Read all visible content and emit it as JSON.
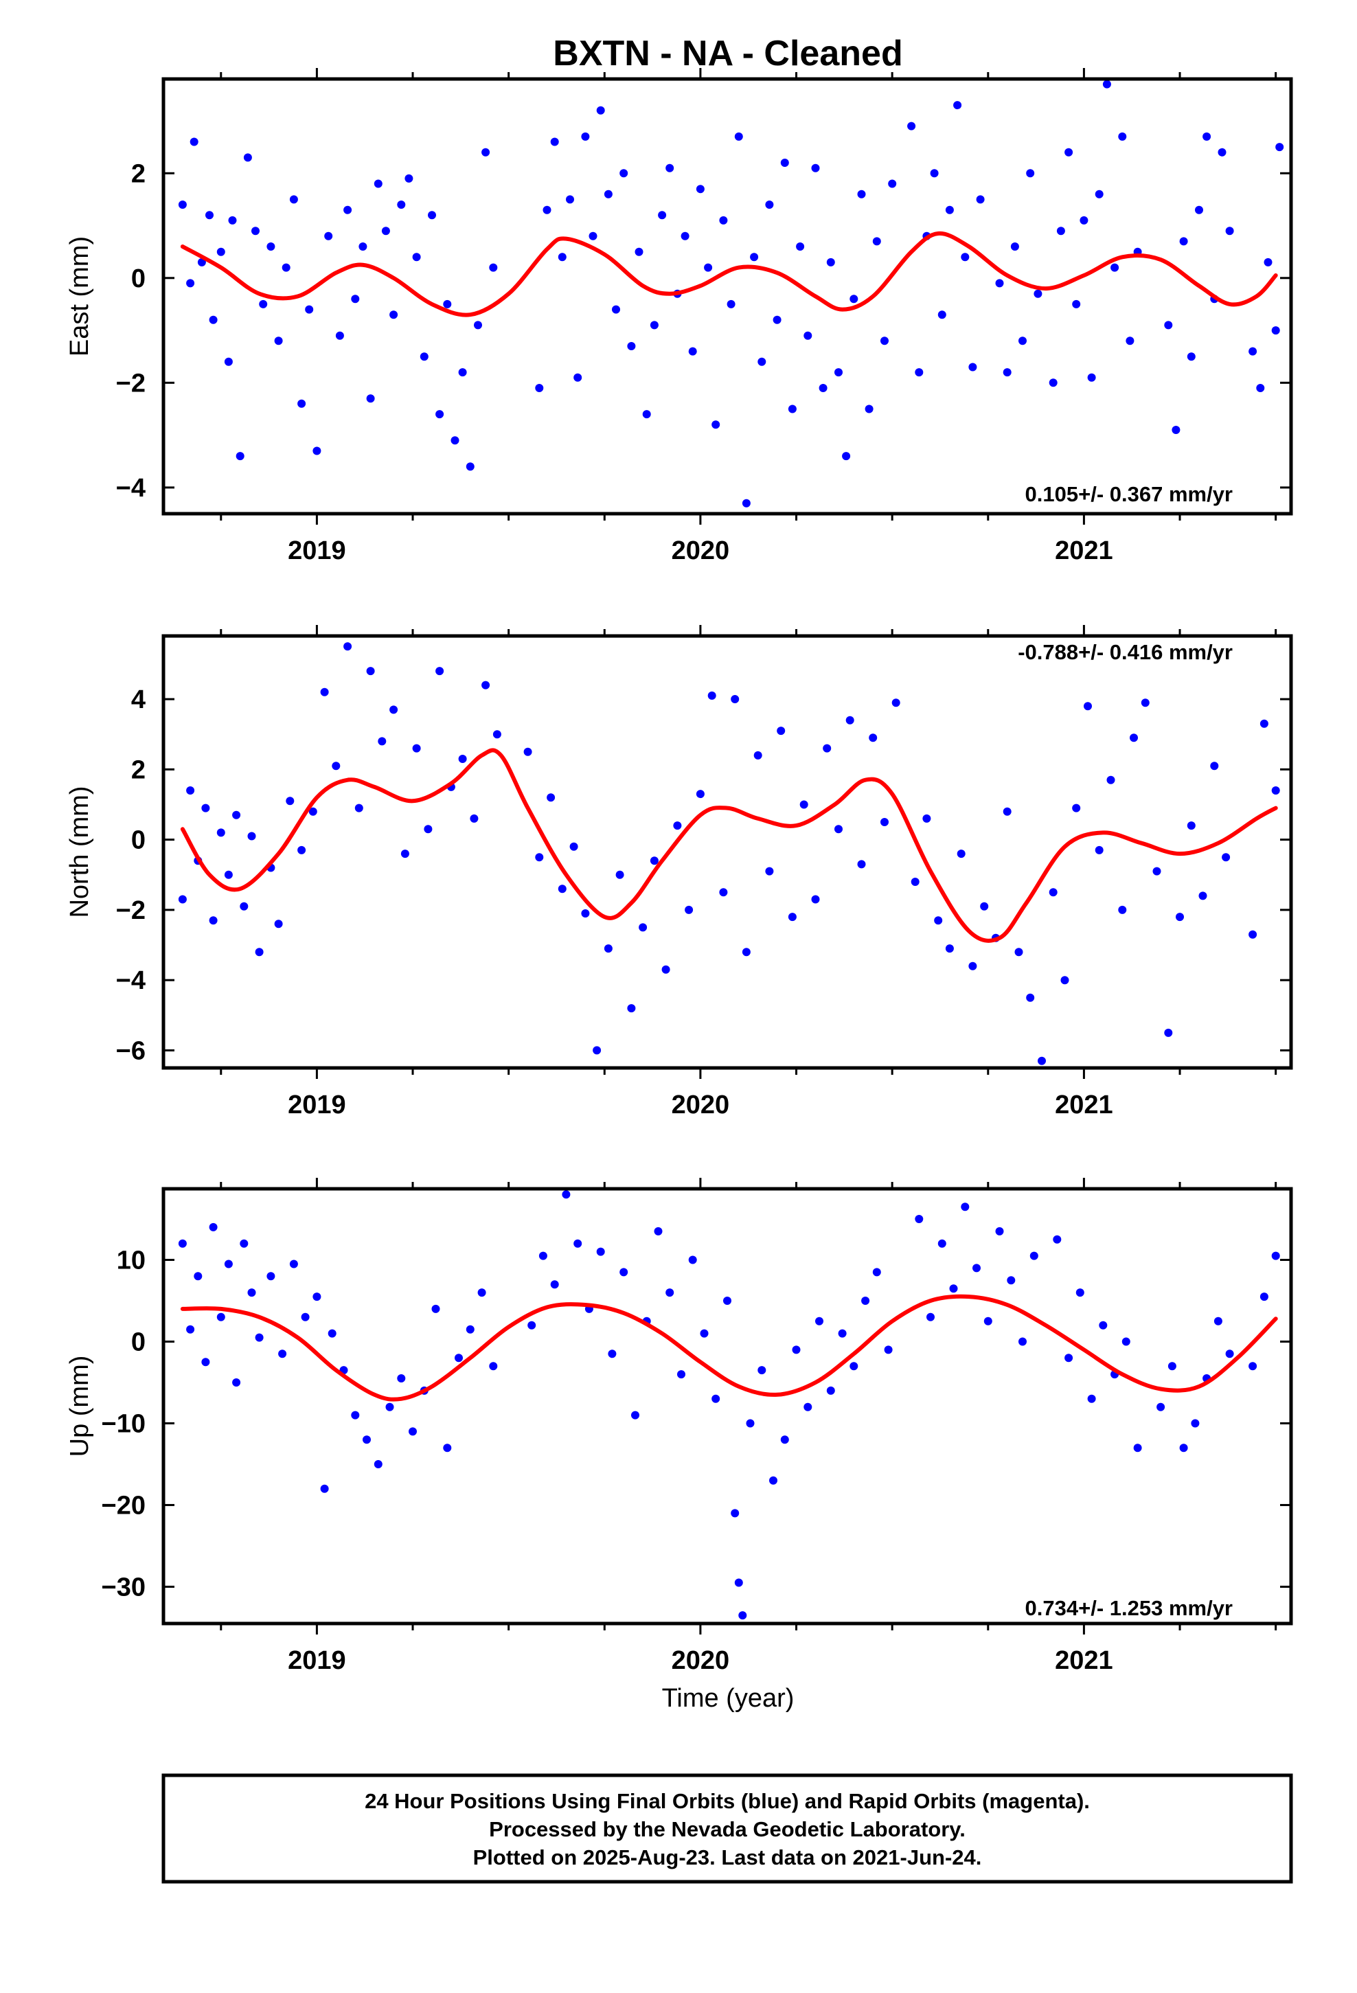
{
  "title": "BXTN  - NA - Cleaned",
  "footer": {
    "lines": [
      "24 Hour Positions Using Final Orbits (blue) and Rapid Orbits (magenta).",
      "Processed by the Nevada Geodetic Laboratory.",
      "Plotted on 2025-Aug-23. Last data on 2021-Jun-24."
    ]
  },
  "colors": {
    "points": "#0000ff",
    "fit": "#ff0000",
    "frame": "#000000"
  },
  "chart_data": [
    {
      "type": "scatter",
      "component": "East",
      "ylabel": "East (mm)",
      "xlabel": "",
      "xlim": [
        2018.6,
        2021.54
      ],
      "ylim": [
        -4.5,
        3.8
      ],
      "xticks": [
        2019,
        2020,
        2021
      ],
      "yticks": [
        -4,
        -2,
        0,
        2
      ],
      "ytick_labels": [
        "−4",
        "−2",
        "0",
        "2"
      ],
      "rate_text": "0.105+/- 0.367 mm/yr",
      "rate_position": "bottom-right",
      "fit_curve": {
        "x": [
          2018.65,
          2018.75,
          2018.85,
          2018.95,
          2019.05,
          2019.12,
          2019.2,
          2019.3,
          2019.4,
          2019.5,
          2019.6,
          2019.65,
          2019.75,
          2019.85,
          2019.92,
          2020.0,
          2020.1,
          2020.2,
          2020.3,
          2020.37,
          2020.45,
          2020.55,
          2020.62,
          2020.7,
          2020.8,
          2020.9,
          2021.0,
          2021.1,
          2021.2,
          2021.3,
          2021.38,
          2021.45,
          2021.5
        ],
        "y": [
          0.6,
          0.2,
          -0.3,
          -0.35,
          0.1,
          0.25,
          0.0,
          -0.5,
          -0.7,
          -0.3,
          0.55,
          0.75,
          0.45,
          -0.15,
          -0.3,
          -0.15,
          0.2,
          0.1,
          -0.35,
          -0.6,
          -0.35,
          0.5,
          0.85,
          0.6,
          0.05,
          -0.2,
          0.05,
          0.4,
          0.35,
          -0.15,
          -0.5,
          -0.35,
          0.05
        ]
      },
      "points": {
        "x": [
          2018.65,
          2018.67,
          2018.68,
          2018.7,
          2018.72,
          2018.73,
          2018.75,
          2018.77,
          2018.78,
          2018.8,
          2018.82,
          2018.84,
          2018.86,
          2018.88,
          2018.9,
          2018.92,
          2018.94,
          2018.96,
          2018.98,
          2019.0,
          2019.03,
          2019.06,
          2019.08,
          2019.1,
          2019.12,
          2019.14,
          2019.16,
          2019.18,
          2019.2,
          2019.22,
          2019.24,
          2019.26,
          2019.28,
          2019.3,
          2019.32,
          2019.34,
          2019.36,
          2019.38,
          2019.4,
          2019.42,
          2019.44,
          2019.46,
          2019.58,
          2019.6,
          2019.62,
          2019.64,
          2019.66,
          2019.68,
          2019.7,
          2019.72,
          2019.74,
          2019.76,
          2019.78,
          2019.8,
          2019.82,
          2019.84,
          2019.86,
          2019.88,
          2019.9,
          2019.92,
          2019.94,
          2019.96,
          2019.98,
          2020.0,
          2020.02,
          2020.04,
          2020.06,
          2020.08,
          2020.1,
          2020.12,
          2020.14,
          2020.16,
          2020.18,
          2020.2,
          2020.22,
          2020.24,
          2020.26,
          2020.28,
          2020.3,
          2020.32,
          2020.34,
          2020.36,
          2020.38,
          2020.4,
          2020.42,
          2020.44,
          2020.46,
          2020.48,
          2020.5,
          2020.55,
          2020.57,
          2020.59,
          2020.61,
          2020.63,
          2020.65,
          2020.67,
          2020.69,
          2020.71,
          2020.73,
          2020.78,
          2020.8,
          2020.82,
          2020.84,
          2020.86,
          2020.88,
          2020.92,
          2020.94,
          2020.96,
          2020.98,
          2021.0,
          2021.02,
          2021.04,
          2021.06,
          2021.08,
          2021.1,
          2021.12,
          2021.14,
          2021.22,
          2021.24,
          2021.26,
          2021.28,
          2021.3,
          2021.32,
          2021.34,
          2021.36,
          2021.38,
          2021.44,
          2021.46,
          2021.48,
          2021.5,
          2021.51
        ],
        "y": [
          1.4,
          -0.1,
          2.6,
          0.3,
          1.2,
          -0.8,
          0.5,
          -1.6,
          1.1,
          -3.4,
          2.3,
          0.9,
          -0.5,
          0.6,
          -1.2,
          0.2,
          1.5,
          -2.4,
          -0.6,
          -3.3,
          0.8,
          -1.1,
          1.3,
          -0.4,
          0.6,
          -2.3,
          1.8,
          0.9,
          -0.7,
          1.4,
          1.9,
          0.4,
          -1.5,
          1.2,
          -2.6,
          -0.5,
          -3.1,
          -1.8,
          -3.6,
          -0.9,
          2.4,
          0.2,
          -2.1,
          1.3,
          2.6,
          0.4,
          1.5,
          -1.9,
          2.7,
          0.8,
          3.2,
          1.6,
          -0.6,
          2.0,
          -1.3,
          0.5,
          -2.6,
          -0.9,
          1.2,
          2.1,
          -0.3,
          0.8,
          -1.4,
          1.7,
          0.2,
          -2.8,
          1.1,
          -0.5,
          2.7,
          -4.3,
          0.4,
          -1.6,
          1.4,
          -0.8,
          2.2,
          -2.5,
          0.6,
          -1.1,
          2.1,
          -2.1,
          0.3,
          -1.8,
          -3.4,
          -0.4,
          1.6,
          -2.5,
          0.7,
          -1.2,
          1.8,
          2.9,
          -1.8,
          0.8,
          2.0,
          -0.7,
          1.3,
          3.3,
          0.4,
          -1.7,
          1.5,
          -0.1,
          -1.8,
          0.6,
          -1.2,
          2.0,
          -0.3,
          -2.0,
          0.9,
          2.4,
          -0.5,
          1.1,
          -1.9,
          1.6,
          3.7,
          0.2,
          2.7,
          -1.2,
          0.5,
          -0.9,
          -2.9,
          0.7,
          -1.5,
          1.3,
          2.7,
          -0.4,
          2.4,
          0.9,
          -1.4,
          -2.1,
          0.3,
          -1.0,
          2.5
        ]
      }
    },
    {
      "type": "scatter",
      "component": "North",
      "ylabel": "North (mm)",
      "xlabel": "",
      "xlim": [
        2018.6,
        2021.54
      ],
      "ylim": [
        -6.5,
        5.8
      ],
      "xticks": [
        2019,
        2020,
        2021
      ],
      "yticks": [
        -6,
        -4,
        -2,
        0,
        2,
        4
      ],
      "ytick_labels": [
        "−6",
        "−4",
        "−2",
        "0",
        "2",
        "4"
      ],
      "rate_text": "-0.788+/- 0.416 mm/yr",
      "rate_position": "top-right",
      "fit_curve": {
        "x": [
          2018.65,
          2018.72,
          2018.8,
          2018.9,
          2019.0,
          2019.08,
          2019.15,
          2019.25,
          2019.35,
          2019.43,
          2019.48,
          2019.55,
          2019.65,
          2019.75,
          2019.82,
          2019.9,
          2020.0,
          2020.07,
          2020.15,
          2020.25,
          2020.35,
          2020.43,
          2020.5,
          2020.6,
          2020.7,
          2020.78,
          2020.85,
          2020.95,
          2021.05,
          2021.15,
          2021.25,
          2021.35,
          2021.45,
          2021.5
        ],
        "y": [
          0.3,
          -1.0,
          -1.4,
          -0.4,
          1.2,
          1.7,
          1.5,
          1.1,
          1.6,
          2.4,
          2.4,
          0.9,
          -1.0,
          -2.2,
          -1.8,
          -0.6,
          0.7,
          0.9,
          0.6,
          0.4,
          1.0,
          1.7,
          1.3,
          -0.9,
          -2.6,
          -2.8,
          -1.8,
          -0.2,
          0.2,
          -0.1,
          -0.4,
          -0.1,
          0.6,
          0.9
        ]
      },
      "points": {
        "x": [
          2018.65,
          2018.67,
          2018.69,
          2018.71,
          2018.73,
          2018.75,
          2018.77,
          2018.79,
          2018.81,
          2018.83,
          2018.85,
          2018.88,
          2018.9,
          2018.93,
          2018.96,
          2018.99,
          2019.02,
          2019.05,
          2019.08,
          2019.11,
          2019.14,
          2019.17,
          2019.2,
          2019.23,
          2019.26,
          2019.29,
          2019.32,
          2019.35,
          2019.38,
          2019.41,
          2019.44,
          2019.47,
          2019.55,
          2019.58,
          2019.61,
          2019.64,
          2019.67,
          2019.7,
          2019.73,
          2019.76,
          2019.79,
          2019.82,
          2019.85,
          2019.88,
          2019.91,
          2019.94,
          2019.97,
          2020.0,
          2020.03,
          2020.06,
          2020.09,
          2020.12,
          2020.15,
          2020.18,
          2020.21,
          2020.24,
          2020.27,
          2020.3,
          2020.33,
          2020.36,
          2020.39,
          2020.42,
          2020.45,
          2020.48,
          2020.51,
          2020.56,
          2020.59,
          2020.62,
          2020.65,
          2020.68,
          2020.71,
          2020.74,
          2020.77,
          2020.8,
          2020.83,
          2020.86,
          2020.89,
          2020.92,
          2020.95,
          2020.98,
          2021.01,
          2021.04,
          2021.07,
          2021.1,
          2021.13,
          2021.16,
          2021.19,
          2021.22,
          2021.25,
          2021.28,
          2021.31,
          2021.34,
          2021.37,
          2021.44,
          2021.47,
          2021.5
        ],
        "y": [
          -1.7,
          1.4,
          -0.6,
          0.9,
          -2.3,
          0.2,
          -1.0,
          0.7,
          -1.9,
          0.1,
          -3.2,
          -0.8,
          -2.4,
          1.1,
          -0.3,
          0.8,
          4.2,
          2.1,
          5.5,
          0.9,
          4.8,
          2.8,
          3.7,
          -0.4,
          2.6,
          0.3,
          4.8,
          1.5,
          2.3,
          0.6,
          4.4,
          3.0,
          2.5,
          -0.5,
          1.2,
          -1.4,
          -0.2,
          -2.1,
          -6.0,
          -3.1,
          -1.0,
          -4.8,
          -2.5,
          -0.6,
          -3.7,
          0.4,
          -2.0,
          1.3,
          4.1,
          -1.5,
          4.0,
          -3.2,
          2.4,
          -0.9,
          3.1,
          -2.2,
          1.0,
          -1.7,
          2.6,
          0.3,
          3.4,
          -0.7,
          2.9,
          0.5,
          3.9,
          -1.2,
          0.6,
          -2.3,
          -3.1,
          -0.4,
          -3.6,
          -1.9,
          -2.8,
          0.8,
          -3.2,
          -4.5,
          -6.3,
          -1.5,
          -4.0,
          0.9,
          3.8,
          -0.3,
          1.7,
          -2.0,
          2.9,
          3.9,
          -0.9,
          -5.5,
          -2.2,
          0.4,
          -1.6,
          2.1,
          -0.5,
          -2.7,
          3.3,
          1.4
        ]
      }
    },
    {
      "type": "scatter",
      "component": "Up",
      "ylabel": "Up (mm)",
      "xlabel": "Time (year)",
      "xlim": [
        2018.6,
        2021.54
      ],
      "ylim": [
        -34.5,
        18.7
      ],
      "xticks": [
        2019,
        2020,
        2021
      ],
      "yticks": [
        -30,
        -20,
        -10,
        0,
        10
      ],
      "ytick_labels": [
        "−30",
        "−20",
        "−10",
        "0",
        "10"
      ],
      "rate_text": "0.734+/- 1.253 mm/yr",
      "rate_position": "bottom-right",
      "fit_curve": {
        "x": [
          2018.65,
          2018.75,
          2018.85,
          2018.95,
          2019.05,
          2019.15,
          2019.22,
          2019.3,
          2019.4,
          2019.5,
          2019.6,
          2019.7,
          2019.8,
          2019.9,
          2020.0,
          2020.1,
          2020.2,
          2020.3,
          2020.4,
          2020.5,
          2020.6,
          2020.7,
          2020.8,
          2020.9,
          2021.0,
          2021.1,
          2021.2,
          2021.3,
          2021.4,
          2021.5
        ],
        "y": [
          4.0,
          4.0,
          3.0,
          0.5,
          -3.5,
          -6.5,
          -7.0,
          -5.5,
          -2.0,
          1.8,
          4.2,
          4.5,
          3.5,
          1.0,
          -2.5,
          -5.5,
          -6.5,
          -5.0,
          -1.5,
          2.5,
          5.0,
          5.5,
          4.5,
          2.0,
          -1.0,
          -4.0,
          -5.8,
          -5.5,
          -2.0,
          2.8
        ]
      },
      "points": {
        "x": [
          2018.65,
          2018.67,
          2018.69,
          2018.71,
          2018.73,
          2018.75,
          2018.77,
          2018.79,
          2018.81,
          2018.83,
          2018.85,
          2018.88,
          2018.91,
          2018.94,
          2018.97,
          2019.0,
          2019.02,
          2019.04,
          2019.07,
          2019.1,
          2019.13,
          2019.16,
          2019.19,
          2019.22,
          2019.25,
          2019.28,
          2019.31,
          2019.34,
          2019.37,
          2019.4,
          2019.43,
          2019.46,
          2019.56,
          2019.59,
          2019.62,
          2019.65,
          2019.68,
          2019.71,
          2019.74,
          2019.77,
          2019.8,
          2019.83,
          2019.86,
          2019.89,
          2019.92,
          2019.95,
          2019.98,
          2020.01,
          2020.04,
          2020.07,
          2020.09,
          2020.1,
          2020.11,
          2020.13,
          2020.16,
          2020.19,
          2020.22,
          2020.25,
          2020.28,
          2020.31,
          2020.34,
          2020.37,
          2020.4,
          2020.43,
          2020.46,
          2020.49,
          2020.57,
          2020.6,
          2020.63,
          2020.66,
          2020.69,
          2020.72,
          2020.75,
          2020.78,
          2020.81,
          2020.84,
          2020.87,
          2020.93,
          2020.96,
          2020.99,
          2021.02,
          2021.05,
          2021.08,
          2021.11,
          2021.14,
          2021.2,
          2021.23,
          2021.26,
          2021.29,
          2021.32,
          2021.35,
          2021.38,
          2021.44,
          2021.47,
          2021.5
        ],
        "y": [
          12.0,
          1.5,
          8.0,
          -2.5,
          14.0,
          3.0,
          9.5,
          -5.0,
          12.0,
          6.0,
          0.5,
          8.0,
          -1.5,
          9.5,
          3.0,
          5.5,
          -18.0,
          1.0,
          -3.5,
          -9.0,
          -12.0,
          -15.0,
          -8.0,
          -4.5,
          -11.0,
          -6.0,
          4.0,
          -13.0,
          -2.0,
          1.5,
          6.0,
          -3.0,
          2.0,
          10.5,
          7.0,
          18.0,
          12.0,
          4.0,
          11.0,
          -1.5,
          8.5,
          -9.0,
          2.5,
          13.5,
          6.0,
          -4.0,
          10.0,
          1.0,
          -7.0,
          5.0,
          -21.0,
          -29.5,
          -33.5,
          -10.0,
          -3.5,
          -17.0,
          -12.0,
          -1.0,
          -8.0,
          2.5,
          -6.0,
          1.0,
          -3.0,
          5.0,
          8.5,
          -1.0,
          15.0,
          3.0,
          12.0,
          6.5,
          16.5,
          9.0,
          2.5,
          13.5,
          7.5,
          0.0,
          10.5,
          12.5,
          -2.0,
          6.0,
          -7.0,
          2.0,
          -4.0,
          0.0,
          -13.0,
          -8.0,
          -3.0,
          -13.0,
          -10.0,
          -4.5,
          2.5,
          -1.5,
          -3.0,
          5.5,
          10.5
        ]
      }
    }
  ]
}
